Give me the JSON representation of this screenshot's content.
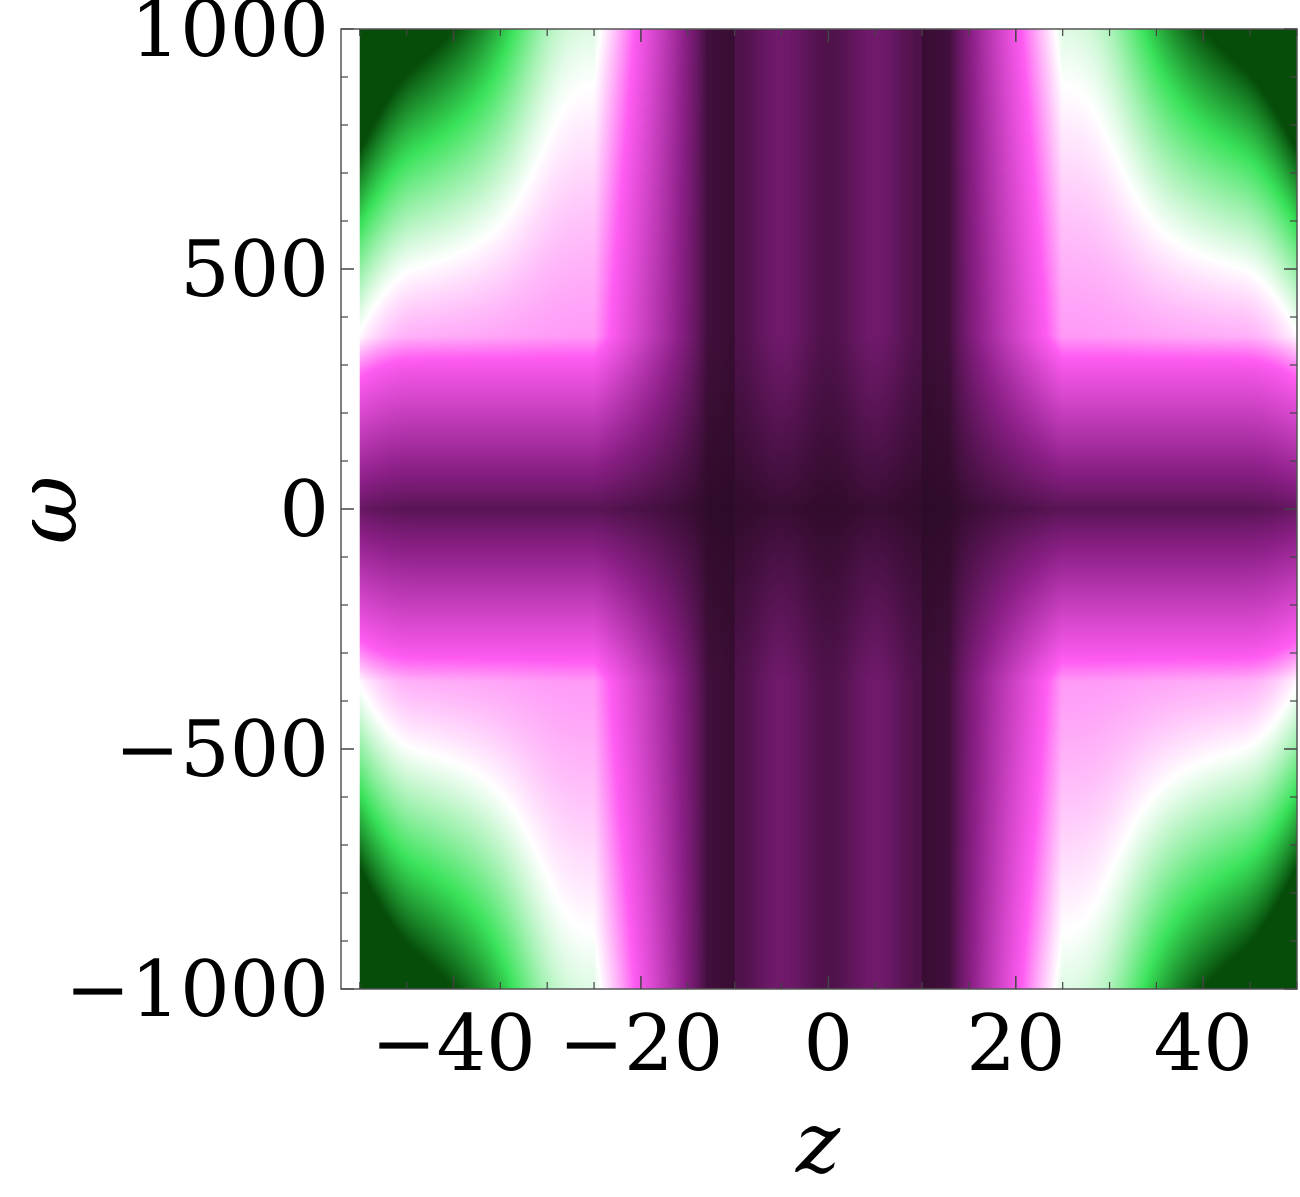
{
  "chart_data": {
    "type": "heatmap",
    "title": "",
    "xlabel": "z",
    "ylabel": "ω",
    "xlim": [
      -52,
      50
    ],
    "ylim": [
      -1000,
      1000
    ],
    "x_ticks": [
      {
        "value": -40,
        "label": "−40"
      },
      {
        "value": -20,
        "label": "−20"
      },
      {
        "value": 0,
        "label": "0"
      },
      {
        "value": 20,
        "label": "20"
      },
      {
        "value": 40,
        "label": "40"
      }
    ],
    "y_ticks": [
      {
        "value": 1000,
        "label": "1000"
      },
      {
        "value": 500,
        "label": "500"
      },
      {
        "value": 0,
        "label": "0"
      },
      {
        "value": -500,
        "label": "−500"
      },
      {
        "value": -1000,
        "label": "−1000"
      }
    ],
    "data_region": {
      "x": [
        -50,
        50
      ],
      "y": [
        -1000,
        1000
      ]
    },
    "colormap": [
      "#2a0a25",
      "#8b1f87",
      "#ff5cf2",
      "#ffffff",
      "#3ae35a",
      "#064d0a"
    ],
    "grid": false,
    "legend": "none"
  }
}
